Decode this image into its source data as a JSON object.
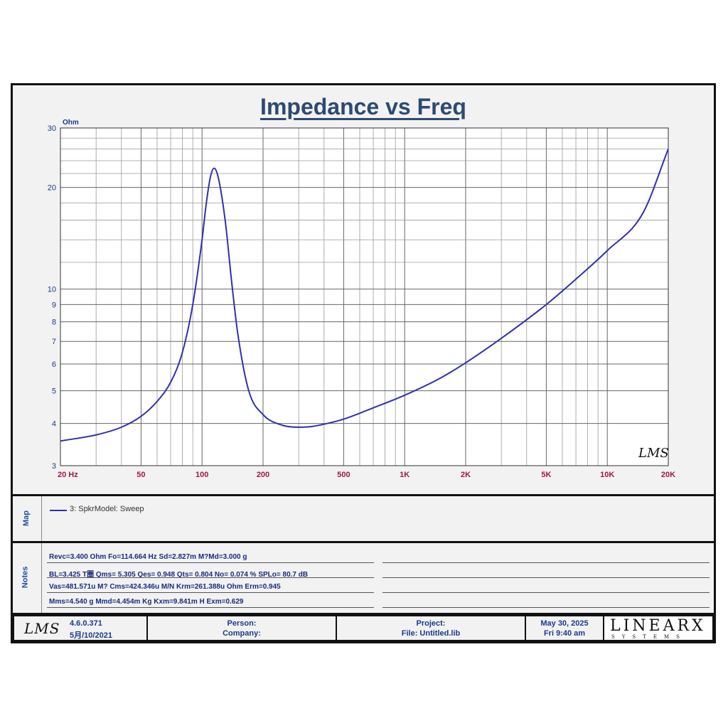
{
  "chart_data": {
    "type": "line",
    "title": "Impedance vs Freq",
    "ylabel": "Ohm",
    "xscale": "log",
    "yscale": "log",
    "xlim": [
      20,
      20000
    ],
    "ylim": [
      3,
      30
    ],
    "grid": true,
    "x_tick_labels": [
      "20 Hz",
      "50",
      "100",
      "200",
      "500",
      "1K",
      "2K",
      "5K",
      "10K",
      "20K"
    ],
    "x_tick_values": [
      20,
      50,
      100,
      200,
      500,
      1000,
      2000,
      5000,
      10000,
      20000
    ],
    "y_tick_labels": [
      "3",
      "4",
      "5",
      "6",
      "7",
      "8",
      "9",
      "10",
      "20",
      "30"
    ],
    "y_tick_values": [
      3,
      4,
      5,
      6,
      7,
      8,
      9,
      10,
      20,
      30
    ],
    "series": [
      {
        "name": "3: SpkrModel: Sweep",
        "color": "#3030b0",
        "x": [
          20,
          30,
          40,
          50,
          60,
          70,
          80,
          90,
          100,
          105,
          110,
          114.7,
          120,
          130,
          140,
          150,
          170,
          200,
          250,
          300,
          350,
          400,
          500,
          700,
          1000,
          1500,
          2000,
          3000,
          5000,
          7000,
          10000,
          15000,
          20000
        ],
        "y": [
          3.55,
          3.7,
          3.9,
          4.2,
          4.65,
          5.3,
          6.5,
          9.0,
          14.0,
          18.0,
          21.5,
          22.8,
          21.5,
          16.0,
          10.5,
          7.4,
          5.0,
          4.25,
          3.95,
          3.9,
          3.92,
          3.98,
          4.12,
          4.45,
          4.85,
          5.45,
          6.05,
          7.15,
          9.0,
          10.7,
          13.0,
          16.8,
          26.0
        ]
      }
    ]
  },
  "legend": {
    "panel_label": "Map",
    "entry": "3: SpkrModel: Sweep"
  },
  "logo": {
    "chart_mark": "LMS"
  },
  "notes": {
    "panel_label": "Notes",
    "lines": [
      "Revc=3.400 Ohm  Fo=114.664 Hz  Sd=2.827m M?Md=3.000 g",
      "BL=3.425 T圈  Qms= 5.305  Qes= 0.948  Qts= 0.804  No= 0.074 %  SPLo= 80.7 dB",
      "Vas=481.571u M? Cms=424.346u M/N  Krm=261.388u Ohm  Erm=0.945",
      "Mms=4.540 g  Mmd=4.454m Kg  Kxm=9.841m H  Exm=0.629"
    ]
  },
  "footer": {
    "logo": "LMS",
    "version": "4.6.0.371",
    "version_date": "5月/10/2021",
    "person_label": "Person:",
    "company_label": "Company:",
    "project_label": "Project:",
    "file_label": "File: Untitled.lib",
    "date": "May 30, 2025",
    "time": "Fri  9:40 am",
    "brand": "LINEARX",
    "brand_sub": "SYSTEMS"
  }
}
